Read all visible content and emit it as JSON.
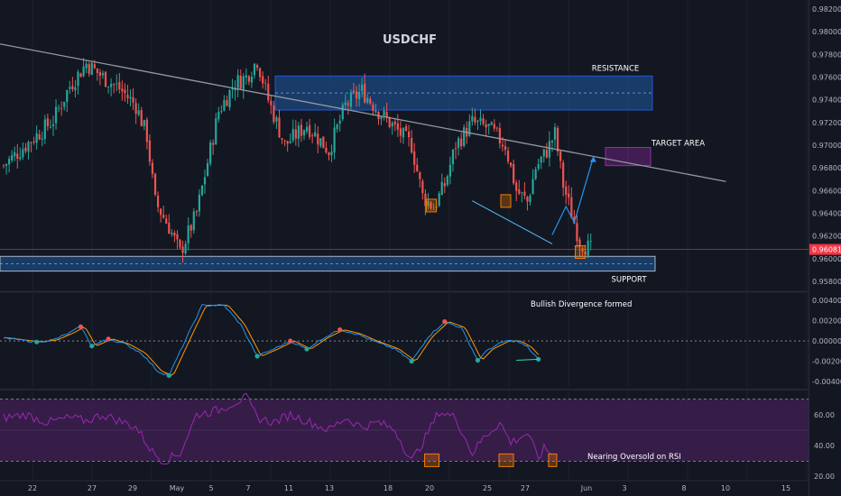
{
  "chart_data": {
    "type": "candlestick",
    "title": "USDCHF",
    "colors": {
      "background": "#131722",
      "bull": "#26a69a",
      "bear": "#ef5350",
      "zone_fill": "#1e5aa0",
      "zone_border": "#2962ff",
      "trendline": "#9598a1",
      "target": "#9c27b0",
      "target_label": "#ba68c8",
      "projection": "#2196f3",
      "price_line": "#f23645",
      "divergence_text": "#26e0a0",
      "macd_line": "#2196f3",
      "signal_line": "#ff9800",
      "rsi_line": "#9c27b0",
      "rsi_band": "#3f1f52",
      "highlight_box": "#f57c00"
    },
    "price_axis": {
      "ticks": [
        "0.98200",
        "0.98000",
        "0.97800",
        "0.97600",
        "0.97400",
        "0.97200",
        "0.97000",
        "0.96800",
        "0.96600",
        "0.96400",
        "0.96200",
        "0.96000",
        "0.95800"
      ],
      "range": [
        0.9572,
        0.9828
      ],
      "current_price": "0.96081"
    },
    "date_axis": {
      "ticks": [
        "22",
        "27",
        "29",
        "May",
        "5",
        "7",
        "11",
        "13",
        "18",
        "20",
        "25",
        "27",
        "Jun",
        "3",
        "8",
        "10",
        "15"
      ]
    },
    "candles": {
      "count": 214,
      "path": [
        [
          0,
          0.9682
        ],
        [
          8,
          0.97
        ],
        [
          18,
          0.9722
        ],
        [
          24,
          0.9752
        ],
        [
          30,
          0.9772
        ],
        [
          36,
          0.976
        ],
        [
          42,
          0.975
        ],
        [
          48,
          0.9735
        ],
        [
          52,
          0.9708
        ],
        [
          55,
          0.965
        ],
        [
          60,
          0.9628
        ],
        [
          64,
          0.9605
        ],
        [
          70,
          0.964
        ],
        [
          78,
          0.973
        ],
        [
          84,
          0.9755
        ],
        [
          88,
          0.976
        ],
        [
          92,
          0.9775
        ],
        [
          96,
          0.974
        ],
        [
          102,
          0.97
        ],
        [
          110,
          0.9718
        ],
        [
          118,
          0.9695
        ],
        [
          124,
          0.9735
        ],
        [
          130,
          0.9748
        ],
        [
          136,
          0.973
        ],
        [
          142,
          0.9715
        ],
        [
          148,
          0.97
        ],
        [
          152,
          0.9655
        ],
        [
          156,
          0.9645
        ],
        [
          160,
          0.9665
        ],
        [
          164,
          0.97
        ],
        [
          170,
          0.972
        ],
        [
          176,
          0.9715
        ],
        [
          182,
          0.97
        ],
        [
          186,
          0.966
        ],
        [
          190,
          0.965
        ],
        [
          193,
          0.968
        ],
        [
          197,
          0.9695
        ],
        [
          200,
          0.971
        ],
        [
          203,
          0.9665
        ],
        [
          206,
          0.964
        ],
        [
          209,
          0.9615
        ],
        [
          213,
          0.9608
        ]
      ]
    },
    "zones": [
      {
        "label": "RESISTANCE",
        "top": 0.9761,
        "bottom": 0.9731
      },
      {
        "label": "SUPPORT",
        "top": 0.9602,
        "bottom": 0.9589
      },
      {
        "label": "TARGET AREA",
        "top": 0.9698,
        "bottom": 0.9682
      }
    ],
    "trendline": {
      "from": [
        -16,
        0.9796
      ],
      "to": [
        262,
        0.9668
      ]
    },
    "projection": [
      [
        199,
        0.9621
      ],
      [
        204,
        0.9646
      ],
      [
        207,
        0.9632
      ],
      [
        214,
        0.969
      ]
    ],
    "divergence_line": [
      [
        170,
        0.9651
      ],
      [
        199,
        0.9613
      ]
    ],
    "macd": {
      "ticks": [
        "0.00400",
        "0.00200",
        "0.00000",
        "-0.00200",
        "-0.00400"
      ],
      "range": [
        -0.0046,
        0.0047
      ],
      "label": "Bullish Divergence formed",
      "path": [
        [
          0,
          0.0003
        ],
        [
          6,
          0.0001
        ],
        [
          12,
          -0.0001
        ],
        [
          18,
          0.0001
        ],
        [
          24,
          0.0008
        ],
        [
          28,
          0.0014
        ],
        [
          32,
          -0.0005
        ],
        [
          38,
          0.0002
        ],
        [
          44,
          -0.0003
        ],
        [
          50,
          -0.0012
        ],
        [
          56,
          -0.003
        ],
        [
          60,
          -0.0034
        ],
        [
          66,
          0.0001
        ],
        [
          72,
          0.0035
        ],
        [
          80,
          0.0035
        ],
        [
          86,
          0.0016
        ],
        [
          92,
          -0.0015
        ],
        [
          98,
          -0.0008
        ],
        [
          104,
          0.0
        ],
        [
          110,
          -0.0008
        ],
        [
          116,
          0.0003
        ],
        [
          122,
          0.0011
        ],
        [
          128,
          0.0007
        ],
        [
          134,
          0.0
        ],
        [
          142,
          -0.0008
        ],
        [
          148,
          -0.002
        ],
        [
          154,
          0.0004
        ],
        [
          160,
          0.0019
        ],
        [
          166,
          0.0013
        ],
        [
          172,
          -0.0019
        ],
        [
          176,
          -0.0008
        ],
        [
          182,
          0.0
        ],
        [
          186,
          0.0
        ],
        [
          190,
          -0.0006
        ],
        [
          194,
          -0.0018
        ]
      ]
    },
    "rsi": {
      "ticks": [
        "60.00",
        "40.00",
        "20.00"
      ],
      "range": [
        18,
        75
      ],
      "upper": 70,
      "lower": 30,
      "label": "Nearing Oversold on RSI",
      "path": [
        [
          0,
          58
        ],
        [
          8,
          60
        ],
        [
          16,
          55
        ],
        [
          24,
          58
        ],
        [
          30,
          56
        ],
        [
          36,
          60
        ],
        [
          42,
          56
        ],
        [
          48,
          52
        ],
        [
          54,
          36
        ],
        [
          58,
          30
        ],
        [
          64,
          35
        ],
        [
          70,
          60
        ],
        [
          78,
          63
        ],
        [
          84,
          68
        ],
        [
          88,
          71
        ],
        [
          92,
          58
        ],
        [
          98,
          55
        ],
        [
          104,
          60
        ],
        [
          110,
          56
        ],
        [
          118,
          50
        ],
        [
          124,
          58
        ],
        [
          130,
          52
        ],
        [
          136,
          55
        ],
        [
          142,
          50
        ],
        [
          148,
          30
        ],
        [
          152,
          42
        ],
        [
          158,
          62
        ],
        [
          164,
          58
        ],
        [
          170,
          35
        ],
        [
          174,
          45
        ],
        [
          180,
          55
        ],
        [
          184,
          42
        ],
        [
          190,
          48
        ],
        [
          194,
          32
        ],
        [
          196,
          38
        ],
        [
          199,
          35
        ]
      ]
    }
  }
}
